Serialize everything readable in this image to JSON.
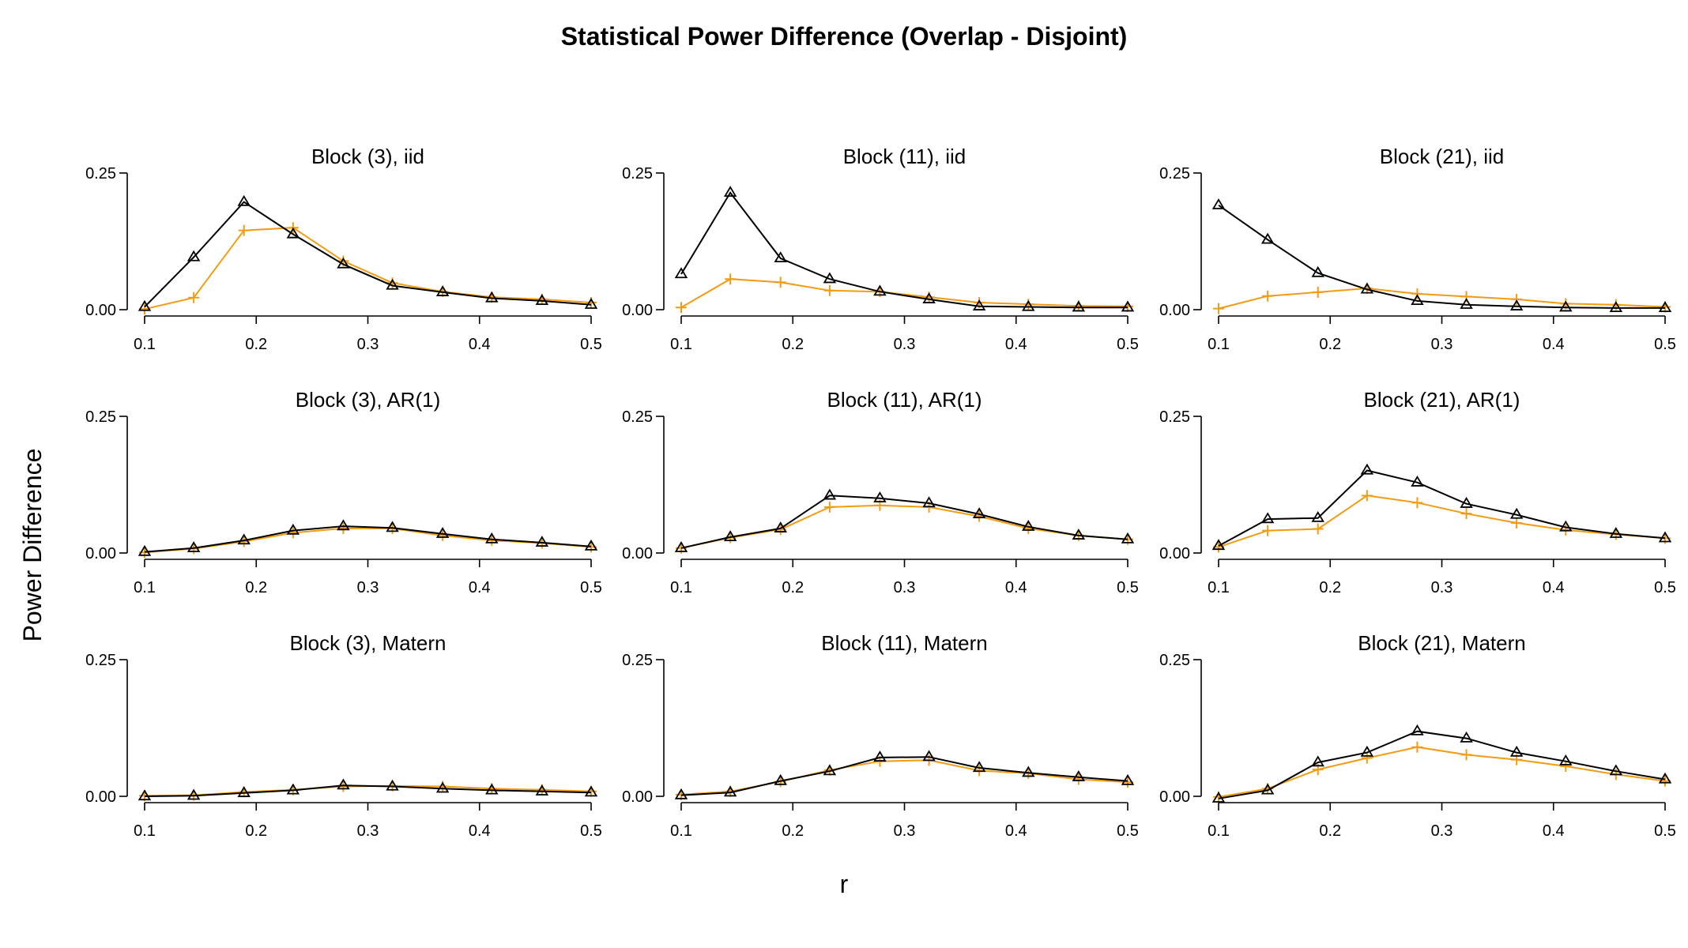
{
  "chart_data": {
    "type": "line",
    "title": "Statistical Power Difference (Overlap - Disjoint)",
    "xlabel": "r",
    "ylabel": "Power Difference",
    "layout": "3x3 grid of panels",
    "grid": false,
    "legend": "none",
    "x": [
      0.1,
      0.144,
      0.189,
      0.233,
      0.278,
      0.322,
      0.367,
      0.411,
      0.456,
      0.5
    ],
    "x_ticks": [
      "0.1",
      "0.2",
      "0.3",
      "0.4",
      "0.5"
    ],
    "y_ticks": [
      "0.00",
      "0.25"
    ],
    "xlim": [
      0.1,
      0.5
    ],
    "ylim": [
      0,
      0.25
    ],
    "series_styles": [
      {
        "color": "#000000",
        "marker": "triangle"
      },
      {
        "color": "#F39C12",
        "marker": "plus"
      }
    ],
    "panels": [
      {
        "title": "Block (3), iid",
        "series": [
          {
            "values": [
              0.005,
              0.096,
              0.197,
              0.138,
              0.083,
              0.044,
              0.032,
              0.021,
              0.016,
              0.009
            ]
          },
          {
            "values": [
              0.001,
              0.022,
              0.145,
              0.15,
              0.089,
              0.049,
              0.033,
              0.023,
              0.019,
              0.013
            ]
          }
        ]
      },
      {
        "title": "Block (11), iid",
        "series": [
          {
            "values": [
              0.065,
              0.214,
              0.094,
              0.056,
              0.033,
              0.019,
              0.006,
              0.005,
              0.004,
              0.004
            ]
          },
          {
            "values": [
              0.004,
              0.056,
              0.05,
              0.035,
              0.033,
              0.023,
              0.013,
              0.01,
              0.007,
              0.006
            ]
          }
        ]
      },
      {
        "title": "Block (21), iid",
        "series": [
          {
            "values": [
              0.191,
              0.128,
              0.067,
              0.037,
              0.016,
              0.009,
              0.006,
              0.004,
              0.003,
              0.003
            ]
          },
          {
            "values": [
              0.002,
              0.025,
              0.032,
              0.039,
              0.029,
              0.024,
              0.019,
              0.011,
              0.009,
              0.005
            ]
          }
        ]
      },
      {
        "title": "Block (3), AR(1)",
        "series": [
          {
            "values": [
              0.002,
              0.009,
              0.023,
              0.041,
              0.049,
              0.046,
              0.035,
              0.025,
              0.019,
              0.012
            ]
          },
          {
            "values": [
              0.001,
              0.008,
              0.021,
              0.037,
              0.045,
              0.045,
              0.032,
              0.023,
              0.018,
              0.011
            ]
          }
        ]
      },
      {
        "title": "Block (11), AR(1)",
        "series": [
          {
            "values": [
              0.009,
              0.029,
              0.045,
              0.105,
              0.1,
              0.091,
              0.071,
              0.048,
              0.032,
              0.025
            ]
          },
          {
            "values": [
              0.009,
              0.028,
              0.043,
              0.084,
              0.087,
              0.084,
              0.067,
              0.045,
              0.032,
              0.025
            ]
          }
        ]
      },
      {
        "title": "Block (21), AR(1)",
        "series": [
          {
            "values": [
              0.013,
              0.062,
              0.064,
              0.151,
              0.129,
              0.09,
              0.07,
              0.047,
              0.035,
              0.027
            ]
          },
          {
            "values": [
              0.011,
              0.041,
              0.044,
              0.105,
              0.092,
              0.072,
              0.055,
              0.042,
              0.034,
              0.027
            ]
          }
        ]
      },
      {
        "title": "Block (3), Matern",
        "series": [
          {
            "values": [
              0.0,
              0.001,
              0.006,
              0.011,
              0.02,
              0.018,
              0.014,
              0.011,
              0.009,
              0.007
            ]
          },
          {
            "values": [
              0.001,
              0.002,
              0.008,
              0.012,
              0.018,
              0.019,
              0.018,
              0.014,
              0.012,
              0.009
            ]
          }
        ]
      },
      {
        "title": "Block (11), Matern",
        "series": [
          {
            "values": [
              0.002,
              0.007,
              0.028,
              0.046,
              0.071,
              0.072,
              0.052,
              0.043,
              0.035,
              0.028
            ]
          },
          {
            "values": [
              0.003,
              0.009,
              0.027,
              0.048,
              0.064,
              0.066,
              0.047,
              0.042,
              0.031,
              0.026
            ]
          }
        ]
      },
      {
        "title": "Block (21), Matern",
        "series": [
          {
            "values": [
              -0.004,
              0.011,
              0.062,
              0.08,
              0.119,
              0.106,
              0.08,
              0.064,
              0.046,
              0.031
            ]
          },
          {
            "values": [
              -0.001,
              0.014,
              0.049,
              0.07,
              0.09,
              0.076,
              0.067,
              0.055,
              0.04,
              0.028
            ]
          }
        ]
      }
    ]
  }
}
